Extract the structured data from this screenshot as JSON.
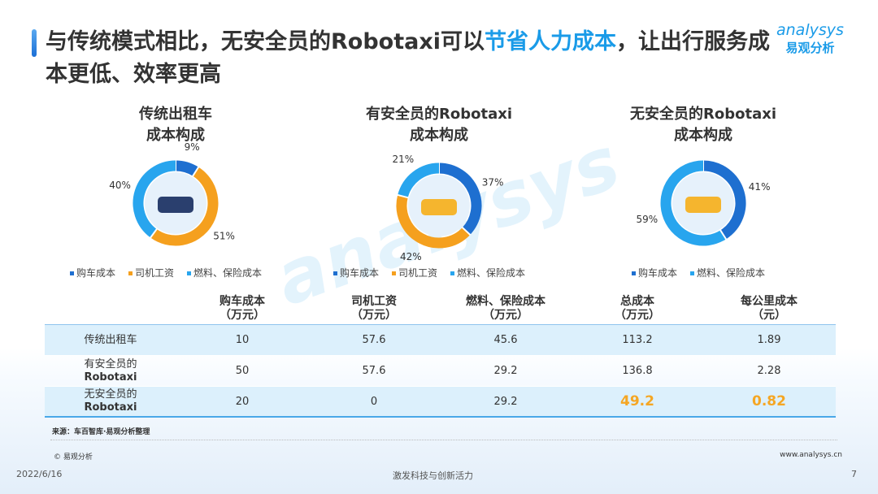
{
  "header": {
    "title_part1": "与传统模式相比，无安全员的Robotaxi可以",
    "title_highlight": "节省人力成本",
    "title_part2": "，让出行服务成本更低、效率更高"
  },
  "logo": {
    "en": "analysys",
    "cn": "易观分析"
  },
  "colors": {
    "purchase": "#1e6fd0",
    "driver": "#f5a01e",
    "fuel": "#28a5ee",
    "highlight": "#f5a623"
  },
  "chart_data": [
    {
      "type": "pie",
      "title": [
        "传统出租车",
        "成本构成"
      ],
      "categories": [
        "购车成本",
        "司机工资",
        "燃料、保险成本"
      ],
      "values": [
        9,
        51,
        40
      ],
      "labels": [
        "9%",
        "51%",
        "40%"
      ],
      "legend": "bottom"
    },
    {
      "type": "pie",
      "title": [
        "有安全员的Robotaxi",
        "成本构成"
      ],
      "categories": [
        "购车成本",
        "司机工资",
        "燃料、保险成本"
      ],
      "values": [
        37,
        42,
        21
      ],
      "labels": [
        "37%",
        "42%",
        "21%"
      ],
      "legend": "bottom"
    },
    {
      "type": "pie",
      "title": [
        "无安全员的Robotaxi",
        "成本构成"
      ],
      "categories": [
        "购车成本",
        "燃料、保险成本"
      ],
      "values": [
        41,
        59
      ],
      "labels": [
        "41%",
        "59%"
      ],
      "legend": "bottom"
    }
  ],
  "table": {
    "headers": [
      [
        "",
        ""
      ],
      [
        "购车成本",
        "（万元）"
      ],
      [
        "司机工资",
        "（万元）"
      ],
      [
        "燃料、保险成本",
        "（万元）"
      ],
      [
        "总成本",
        "（万元）"
      ],
      [
        "每公里成本",
        "（元）"
      ]
    ],
    "rows": [
      {
        "name": [
          "传统出租车",
          ""
        ],
        "cells": [
          "10",
          "57.6",
          "45.6",
          "113.2",
          "1.89"
        ]
      },
      {
        "name": [
          "有安全员的",
          "Robotaxi"
        ],
        "cells": [
          "50",
          "57.6",
          "29.2",
          "136.8",
          "2.28"
        ]
      },
      {
        "name": [
          "无安全员的",
          "Robotaxi"
        ],
        "cells": [
          "20",
          "0",
          "29.2",
          "49.2",
          "0.82"
        ]
      }
    ]
  },
  "footer": {
    "source": "来源：车百智库·易观分析整理",
    "copyright": "© 易观分析",
    "website": "www.analysys.cn",
    "date": "2022/6/16",
    "slogan": "激发科技与创新活力",
    "page": "7"
  }
}
